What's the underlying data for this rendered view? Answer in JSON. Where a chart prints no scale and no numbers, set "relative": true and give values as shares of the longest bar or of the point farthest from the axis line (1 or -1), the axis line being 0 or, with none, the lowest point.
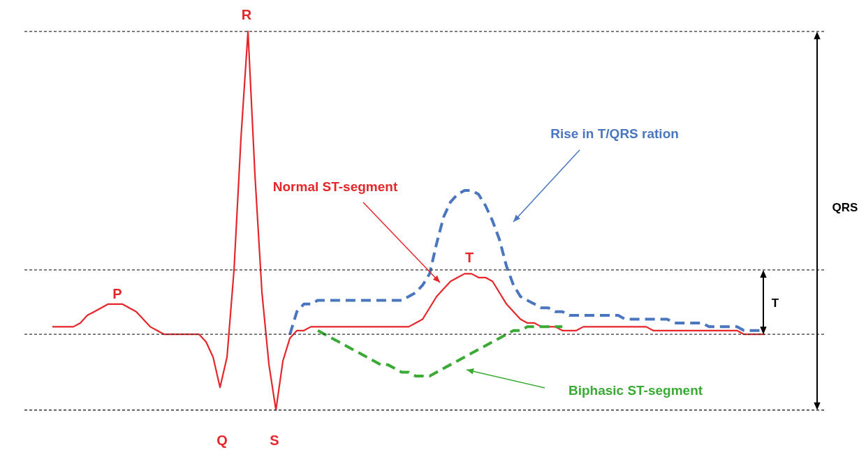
{
  "chart_data": {
    "type": "line",
    "relative": true,
    "grid": false,
    "categories": [
      null,
      null,
      null,
      null,
      null,
      null,
      null,
      null,
      null,
      null,
      null,
      null,
      null,
      null,
      null,
      null,
      null,
      null,
      null,
      null,
      null,
      null,
      null,
      null,
      null,
      null,
      null,
      null,
      null,
      null,
      null,
      null,
      null,
      null,
      null,
      null,
      null,
      null,
      null,
      null,
      null,
      null,
      null,
      null,
      null,
      null,
      null,
      null,
      null,
      null,
      null,
      null,
      null,
      null,
      null,
      null,
      null,
      null,
      null,
      null,
      null,
      null,
      null,
      null,
      null,
      null,
      null,
      null,
      null,
      null,
      null,
      null,
      null,
      null,
      null,
      null,
      null,
      null,
      null,
      null,
      null,
      null,
      null,
      null,
      null,
      null,
      null,
      null,
      null,
      null,
      null,
      null,
      null,
      null,
      null,
      null,
      null,
      null,
      null,
      null,
      null,
      null,
      null
    ],
    "series": [
      {
        "color": "#e5262a",
        "line_style": "solid",
        "values": [
          0.22,
          0.22,
          0.22,
          0.22,
          0.23,
          0.25,
          0.26,
          0.27,
          0.28,
          0.28,
          0.28,
          0.27,
          0.26,
          0.24,
          0.22,
          0.21,
          0.2,
          0.2,
          0.2,
          0.2,
          0.2,
          0.2,
          0.18,
          0.14,
          0.06,
          0.14,
          0.37,
          0.72,
          1,
          0.62,
          0.31,
          0.12,
          0,
          0.13,
          0.19,
          0.21,
          0.21,
          0.22,
          0.22,
          0.22,
          0.22,
          0.22,
          0.22,
          0.22,
          0.22,
          0.22,
          0.22,
          0.22,
          0.22,
          0.22,
          0.22,
          0.22,
          0.23,
          0.24,
          0.27,
          0.3,
          0.32,
          0.34,
          0.35,
          0.36,
          0.36,
          0.35,
          0.35,
          0.34,
          0.31,
          0.28,
          0.26,
          0.24,
          0.23,
          0.23,
          0.22,
          0.22,
          0.22,
          0.21,
          0.21,
          0.21,
          0.22,
          0.22,
          0.22,
          0.22,
          0.22,
          0.22,
          0.22,
          0.22,
          0.22,
          0.22,
          0.21,
          0.21,
          0.21,
          0.21,
          0.21,
          0.21,
          0.21,
          0.21,
          0.21,
          0.21,
          0.21,
          0.21,
          0.21,
          0.2,
          0.2,
          0.2,
          0.2
        ]
      },
      {
        "color": "#4a76c0",
        "line_style": "dashed",
        "values": [
          null,
          null,
          null,
          null,
          null,
          null,
          null,
          null,
          null,
          null,
          null,
          null,
          null,
          null,
          null,
          null,
          null,
          null,
          null,
          null,
          null,
          null,
          null,
          null,
          null,
          null,
          null,
          null,
          null,
          null,
          null,
          null,
          null,
          null,
          0.2,
          0.26,
          0.28,
          0.28,
          0.29,
          0.29,
          0.29,
          0.29,
          0.29,
          0.29,
          0.29,
          0.29,
          0.29,
          0.29,
          0.29,
          0.29,
          0.29,
          0.3,
          0.31,
          0.33,
          0.36,
          0.44,
          0.51,
          0.55,
          0.57,
          0.58,
          0.58,
          0.57,
          0.54,
          0.5,
          0.45,
          0.38,
          0.33,
          0.3,
          0.29,
          0.28,
          0.27,
          0.27,
          0.26,
          0.26,
          0.25,
          0.25,
          0.25,
          0.25,
          0.25,
          0.25,
          0.25,
          0.25,
          0.24,
          0.24,
          0.24,
          0.24,
          0.24,
          0.24,
          0.24,
          0.23,
          0.23,
          0.23,
          0.23,
          0.23,
          0.22,
          0.22,
          0.22,
          0.22,
          0.22,
          0.21,
          0.21,
          0.21,
          0.21
        ]
      },
      {
        "color": "#3aaa35",
        "line_style": "dashed",
        "values": [
          null,
          null,
          null,
          null,
          null,
          null,
          null,
          null,
          null,
          null,
          null,
          null,
          null,
          null,
          null,
          null,
          null,
          null,
          null,
          null,
          null,
          null,
          null,
          null,
          null,
          null,
          null,
          null,
          null,
          null,
          null,
          null,
          null,
          null,
          null,
          null,
          null,
          null,
          0.21,
          0.2,
          0.19,
          0.18,
          0.17,
          0.16,
          0.15,
          0.14,
          0.13,
          0.12,
          0.12,
          0.11,
          0.1,
          0.1,
          0.09,
          0.09,
          0.09,
          0.1,
          0.11,
          0.12,
          0.13,
          0.14,
          0.15,
          0.16,
          0.17,
          0.18,
          0.19,
          0.2,
          0.21,
          0.21,
          0.22,
          0.22,
          0.22,
          0.22,
          0.22,
          0.22,
          null,
          null,
          null,
          null,
          null,
          null,
          null,
          null,
          null,
          null,
          null,
          null,
          null,
          null,
          null,
          null,
          null,
          null,
          null,
          null,
          null,
          null,
          null,
          null,
          null,
          null,
          null,
          null,
          null
        ]
      }
    ],
    "ref_lines": [
      {
        "axis": "y",
        "value": 1,
        "color": "#333333",
        "line_style": "dashed"
      },
      {
        "axis": "y",
        "value": 0.37,
        "color": "#333333",
        "line_style": "dashed"
      },
      {
        "axis": "y",
        "value": 0.2,
        "color": "#333333",
        "line_style": "dashed"
      },
      {
        "axis": "y",
        "value": 0,
        "color": "#333333",
        "line_style": "dashed"
      }
    ],
    "annotations": [
      "P",
      "Q",
      "R",
      "S",
      "T",
      "Normal ST-segment",
      "Rise in T/QRS ration",
      "Biphasic ST-segment",
      "QRS",
      "T"
    ]
  }
}
